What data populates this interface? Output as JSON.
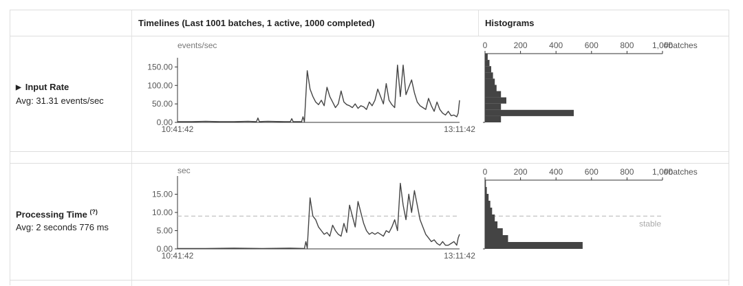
{
  "header": {
    "timelines": "Timelines (Last 1001 batches, 1 active, 1000 completed)",
    "histograms": "Histograms"
  },
  "colors": {
    "line": "#444444",
    "bar": "#444444",
    "stable": "#bbbbbb",
    "axis": "#333333"
  },
  "rows": [
    {
      "name": "Input Rate",
      "toggle_icon": "triangle-right-icon",
      "avg": "Avg: 31.31 events/sec"
    },
    {
      "name": "Processing Time",
      "help": "(?)",
      "avg": "Avg: 2 seconds 776 ms"
    }
  ],
  "chart_data": [
    {
      "type": "line",
      "unit": "events/sec",
      "y_ticks": [
        "0.00",
        "50.00",
        "100.00",
        "150.00"
      ],
      "ylim": [
        0,
        160
      ],
      "x_labels": [
        "10:41:42",
        "13:11:42"
      ],
      "x_range": [
        "10:41:42",
        "13:11:42"
      ],
      "stable_line": null,
      "series": {
        "x": [
          0,
          0.05,
          0.1,
          0.15,
          0.2,
          0.25,
          0.28,
          0.285,
          0.29,
          0.32,
          0.38,
          0.4,
          0.405,
          0.41,
          0.43,
          0.44,
          0.445,
          0.45,
          0.46,
          0.47,
          0.48,
          0.49,
          0.5,
          0.51,
          0.52,
          0.53,
          0.54,
          0.55,
          0.56,
          0.57,
          0.58,
          0.59,
          0.6,
          0.61,
          0.62,
          0.63,
          0.64,
          0.65,
          0.66,
          0.67,
          0.68,
          0.69,
          0.7,
          0.71,
          0.72,
          0.73,
          0.74,
          0.75,
          0.76,
          0.77,
          0.78,
          0.79,
          0.8,
          0.81,
          0.82,
          0.83,
          0.84,
          0.85,
          0.86,
          0.87,
          0.88,
          0.89,
          0.9,
          0.91,
          0.92,
          0.93,
          0.94,
          0.95,
          0.96,
          0.97,
          0.98,
          0.99,
          0.995,
          1.0
        ],
        "y": [
          2,
          2,
          3,
          2,
          2,
          3,
          2,
          12,
          2,
          3,
          2,
          2,
          10,
          2,
          2,
          2,
          15,
          2,
          140,
          90,
          70,
          55,
          48,
          60,
          45,
          95,
          70,
          55,
          40,
          50,
          85,
          55,
          48,
          45,
          40,
          50,
          38,
          45,
          42,
          35,
          55,
          45,
          60,
          90,
          70,
          50,
          105,
          60,
          48,
          40,
          155,
          70,
          155,
          75,
          95,
          115,
          80,
          55,
          45,
          40,
          35,
          65,
          45,
          30,
          55,
          35,
          25,
          20,
          30,
          18,
          20,
          15,
          25,
          60
        ]
      },
      "histogram": {
        "x_ticks": [
          "0",
          "200",
          "400",
          "600",
          "800",
          "1,000"
        ],
        "xlim": [
          0,
          1000
        ],
        "x_label": "#batches",
        "bins_from_top": [
          15,
          25,
          35,
          45,
          55,
          65,
          90,
          120,
          90,
          500,
          90
        ]
      }
    },
    {
      "type": "line",
      "unit": "sec",
      "y_ticks": [
        "0.00",
        "5.00",
        "10.00",
        "15.00"
      ],
      "ylim": [
        0,
        18.5
      ],
      "x_labels": [
        "10:41:42",
        "13:11:42"
      ],
      "x_range": [
        "10:41:42",
        "13:11:42"
      ],
      "stable_line": {
        "value": 9.0,
        "label": "stable"
      },
      "series": {
        "x": [
          0,
          0.1,
          0.2,
          0.3,
          0.4,
          0.45,
          0.455,
          0.46,
          0.47,
          0.48,
          0.49,
          0.5,
          0.51,
          0.52,
          0.53,
          0.54,
          0.55,
          0.56,
          0.57,
          0.58,
          0.59,
          0.6,
          0.61,
          0.62,
          0.63,
          0.64,
          0.65,
          0.66,
          0.67,
          0.68,
          0.69,
          0.7,
          0.71,
          0.72,
          0.73,
          0.74,
          0.75,
          0.76,
          0.77,
          0.78,
          0.79,
          0.8,
          0.81,
          0.82,
          0.83,
          0.84,
          0.85,
          0.86,
          0.87,
          0.88,
          0.89,
          0.9,
          0.91,
          0.92,
          0.93,
          0.94,
          0.95,
          0.96,
          0.97,
          0.98,
          0.99,
          0.995,
          1.0
        ],
        "y": [
          0.1,
          0.1,
          0.2,
          0.1,
          0.2,
          0.1,
          2.0,
          0.2,
          14.0,
          9.0,
          8.0,
          6.0,
          5.0,
          4.0,
          4.5,
          3.5,
          6.5,
          5.0,
          4.0,
          3.5,
          7.0,
          4.5,
          12.0,
          9.0,
          6.0,
          13.0,
          10.0,
          7.0,
          5.0,
          4.0,
          4.5,
          4.0,
          4.5,
          4.0,
          3.5,
          5.0,
          4.5,
          6.0,
          8.0,
          5.0,
          18.0,
          12.0,
          8.0,
          15.0,
          10.0,
          16.0,
          12.0,
          8.0,
          6.0,
          4.0,
          3.0,
          2.0,
          2.5,
          1.5,
          1.0,
          2.0,
          1.0,
          1.0,
          1.5,
          2.0,
          1.0,
          3.0,
          4.0
        ]
      },
      "histogram": {
        "x_ticks": [
          "0",
          "200",
          "400",
          "600",
          "800",
          "1,000"
        ],
        "xlim": [
          0,
          1000
        ],
        "x_label": "#batches",
        "bins_from_top": [
          5,
          10,
          20,
          30,
          40,
          55,
          70,
          100,
          130,
          550
        ]
      }
    }
  ]
}
